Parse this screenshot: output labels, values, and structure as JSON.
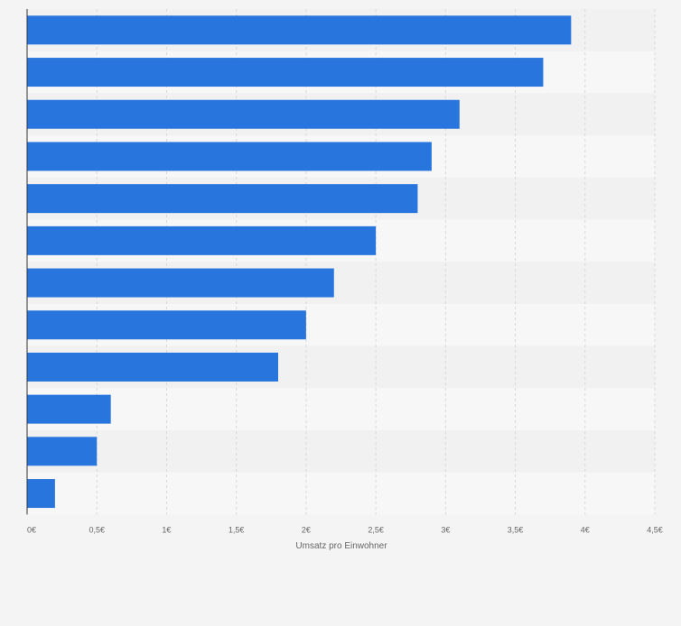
{
  "chart_data": {
    "type": "bar",
    "orientation": "horizontal",
    "categories": [
      "",
      "",
      "",
      "",
      "",
      "",
      "",
      "",
      "",
      "",
      "",
      ""
    ],
    "values": [
      3.9,
      3.7,
      3.1,
      2.9,
      2.8,
      2.5,
      2.2,
      2.0,
      1.8,
      0.6,
      0.5,
      0.2
    ],
    "xlabel": "Umsatz pro Einwohner",
    "ylabel": "",
    "xlim": [
      0,
      4.5
    ],
    "xticks": [
      0,
      0.5,
      1,
      1.5,
      2,
      2.5,
      3,
      3.5,
      4,
      4.5
    ],
    "xtick_labels": [
      "0€",
      "0,5€",
      "1€",
      "1,5€",
      "2€",
      "2,5€",
      "3€",
      "3,5€",
      "4€",
      "4,5€"
    ],
    "grid": "vertical-dashed",
    "legend": "none",
    "colors": {
      "bar": "#2876dd",
      "band_light": "#f7f7f7",
      "band_dark": "#f1f1f2",
      "background": "#f4f4f5",
      "grid": "#d8d8d8",
      "axis": "#333333",
      "tick_text": "#666666"
    }
  }
}
